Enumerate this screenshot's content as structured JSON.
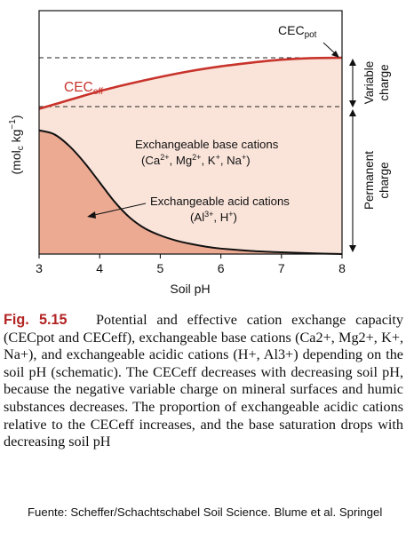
{
  "chart_data": {
    "type": "area",
    "x_label": "Soil pH",
    "y_label": "(mol",
    "y_label_sub": "c",
    "y_label_tail": " kg",
    "y_label_sup": "−1",
    "y_label_end": ")",
    "xlim": [
      3,
      8
    ],
    "x_ticks": [
      "3",
      "4",
      "5",
      "6",
      "7",
      "8"
    ],
    "series": [
      {
        "name": "CEC",
        "name_sub": "eff",
        "color": "#c8332b",
        "x": [
          3,
          3.5,
          4,
          4.5,
          5,
          5.5,
          6,
          6.5,
          7,
          7.5,
          8
        ],
        "y": [
          0.74,
          0.785,
          0.83,
          0.868,
          0.902,
          0.932,
          0.956,
          0.975,
          0.99,
          0.998,
          1.0
        ]
      },
      {
        "name": "Exchangeable acid cations",
        "color": "#111111",
        "x": [
          3,
          3.25,
          3.5,
          3.75,
          4,
          4.25,
          4.5,
          4.75,
          5,
          5.25,
          5.5,
          5.75,
          6,
          6.5,
          7,
          7.5,
          8
        ],
        "y": [
          0.63,
          0.61,
          0.55,
          0.465,
          0.365,
          0.265,
          0.185,
          0.13,
          0.095,
          0.07,
          0.052,
          0.038,
          0.028,
          0.016,
          0.009,
          0.004,
          0.0
        ]
      }
    ],
    "cec_pot": {
      "label": "CEC",
      "label_sub": "pot",
      "y": 1.0
    },
    "regions": [
      {
        "label": "Exchangeable base cations",
        "ions": "(Ca2+, Mg2+, K+, Na+)"
      },
      {
        "label": "Exchangeable  acid cations",
        "ions": "(Al3+, H+)"
      }
    ],
    "side_labels": {
      "variable": [
        "Variable",
        "charge"
      ],
      "permanent": [
        "Permanent",
        "charge"
      ]
    },
    "colors": {
      "base_fill": "#fae4da",
      "acid_fill": "#ecaa92",
      "cec_line": "#c8332b"
    }
  },
  "caption": {
    "figure_label": "Fig. 5.15",
    "text": "Potential and effective cation exchange capacity (CECpot and CECeff), exchangeable base cations (Ca2+, Mg2+, K+, Na+), and exchangeable acidic cations (H+, Al3+) depending on the soil pH (schematic). The CECeff decreases with decreasing soil pH, because the negative variable charge on mineral surfaces and humic substances decreases. The proportion of exchangeable acidic cations relative to the CECeff increases, and the base saturation drops with decreasing soil pH"
  },
  "source": "Fuente: Scheffer/Schachtschabel Soil Science. Blume et al. Springel"
}
